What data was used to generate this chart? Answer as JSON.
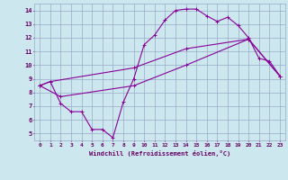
{
  "bg_color": "#cce8ee",
  "line_color": "#880099",
  "grid_color": "#99aacc",
  "xlabel": "Windchill (Refroidissement éolien,°C)",
  "xlabel_color": "#660066",
  "tick_color": "#660066",
  "xlim": [
    -0.5,
    23.5
  ],
  "ylim": [
    4.5,
    14.5
  ],
  "yticks": [
    5,
    6,
    7,
    8,
    9,
    10,
    11,
    12,
    13,
    14
  ],
  "xticks": [
    0,
    1,
    2,
    3,
    4,
    5,
    6,
    7,
    8,
    9,
    10,
    11,
    12,
    13,
    14,
    15,
    16,
    17,
    18,
    19,
    20,
    21,
    22,
    23
  ],
  "line1_x": [
    0,
    1,
    2,
    3,
    4,
    5,
    6,
    7,
    8,
    9,
    10,
    11,
    12,
    13,
    14,
    15,
    16,
    17,
    18,
    19,
    20,
    21,
    22,
    23
  ],
  "line1_y": [
    8.5,
    8.8,
    7.2,
    6.6,
    6.6,
    5.3,
    5.3,
    4.7,
    7.3,
    9.0,
    11.5,
    12.2,
    13.3,
    14.0,
    14.1,
    14.1,
    13.6,
    13.2,
    13.5,
    12.9,
    12.0,
    10.5,
    10.3,
    9.2
  ],
  "line2_x": [
    0,
    1,
    9,
    14,
    20,
    23
  ],
  "line2_y": [
    8.5,
    8.8,
    9.8,
    11.2,
    11.9,
    9.2
  ],
  "line3_x": [
    0,
    2,
    9,
    14,
    20,
    23
  ],
  "line3_y": [
    8.5,
    7.7,
    8.5,
    10.0,
    11.9,
    9.2
  ]
}
